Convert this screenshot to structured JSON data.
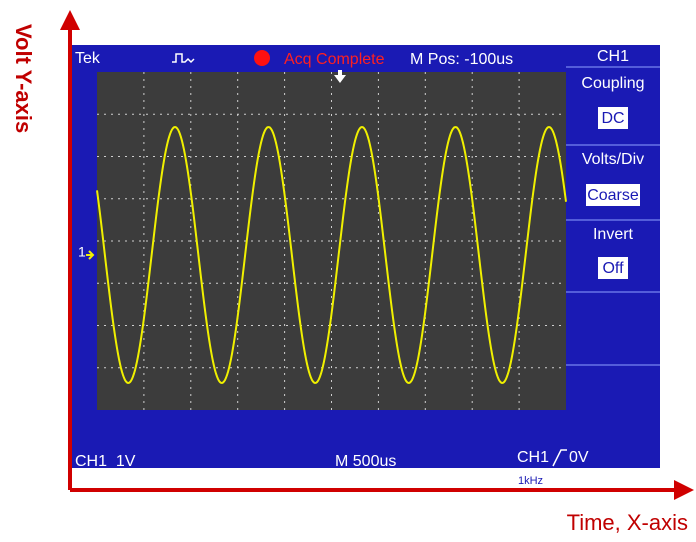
{
  "annotations": {
    "y_axis": "Volt Y-axis",
    "x_axis": "Time, X-axis"
  },
  "header": {
    "brand": "Tek",
    "status": "Acq Complete",
    "position": "M Pos: -100us",
    "channel": "CH1"
  },
  "menu": [
    {
      "label": "Coupling",
      "value": "DC"
    },
    {
      "label": "Volts/Div",
      "value": "Coarse"
    },
    {
      "label": "Invert",
      "value": "Off"
    }
  ],
  "footer": {
    "scale": "CH1  1V",
    "timebase": "M 500us",
    "trigger_source": "CH1",
    "trigger_level": "0V",
    "frequency": "1kHz"
  },
  "marker": "1"
}
